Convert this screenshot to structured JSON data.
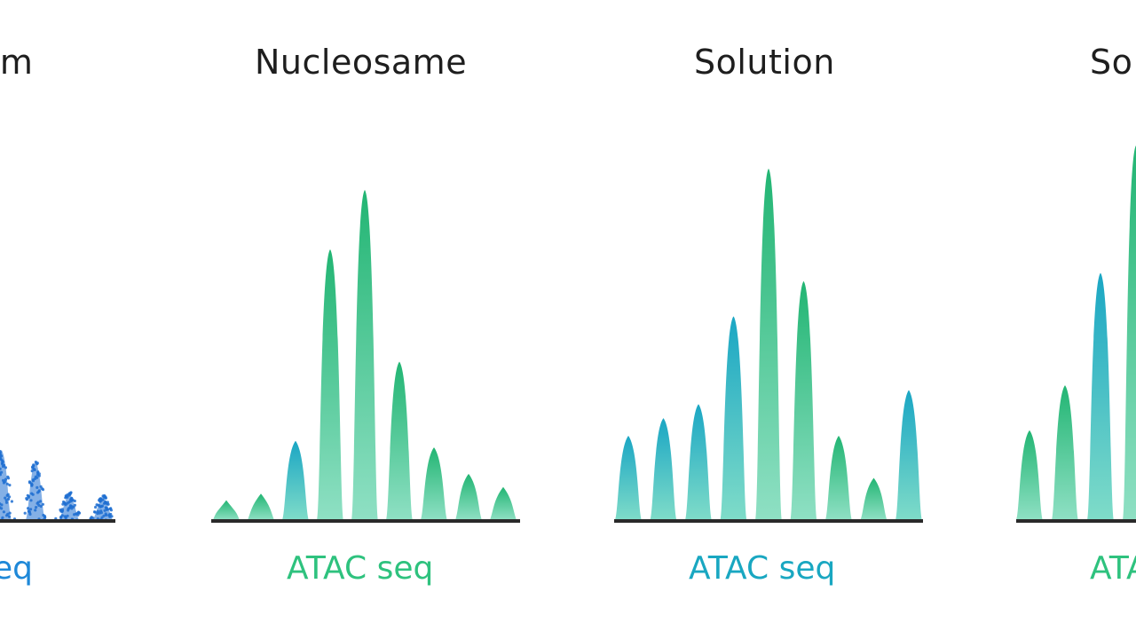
{
  "colors": {
    "green": "#22b573",
    "teal": "#1aa6c4",
    "blue": "#1f6fd1",
    "baseline": "#2a2a2a",
    "label_green": "#2ec27e",
    "label_teal": "#19a7c1",
    "label_blue": "#1e88d8"
  },
  "chart_data": [
    {
      "type": "bar",
      "title": "em",
      "label": "eq",
      "style": "scattered",
      "values": [
        0.45,
        0.38,
        0.18,
        0.16
      ]
    },
    {
      "type": "bar",
      "title": "Nucleosame",
      "label": "ATAC seq",
      "style": "peaks",
      "values": [
        0.06,
        0.08,
        0.24,
        0.82,
        1.0,
        0.48,
        0.22,
        0.14,
        0.1
      ]
    },
    {
      "type": "bar",
      "title": "Solution",
      "label": "ATAC seq",
      "style": "peaks",
      "values": [
        0.24,
        0.29,
        0.33,
        0.58,
        1.0,
        0.68,
        0.24,
        0.12,
        0.37
      ]
    },
    {
      "type": "bar",
      "title": "So",
      "label": "ATA",
      "style": "peaks",
      "values": [
        0.24,
        0.36,
        0.66,
        1.0
      ]
    }
  ]
}
